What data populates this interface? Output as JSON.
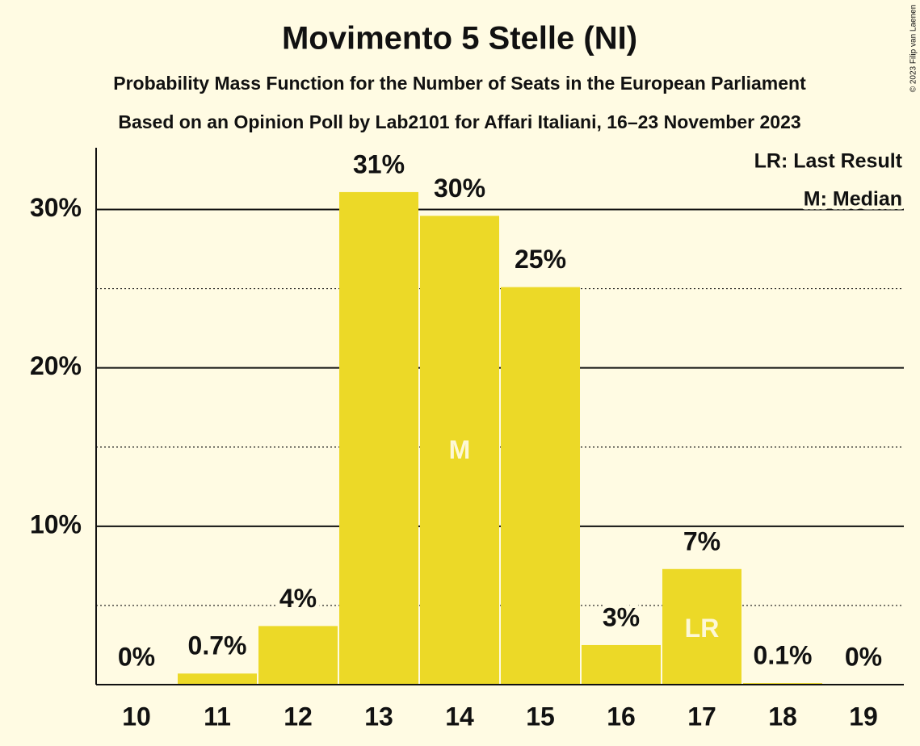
{
  "chart_data": {
    "type": "bar",
    "title": "Movimento 5 Stelle (NI)",
    "subtitle": "Probability Mass Function for the Number of Seats in the European Parliament",
    "subtitle2": "Based on an Opinion Poll by Lab2101 for Affari Italiani, 16–23 November 2023",
    "copyright": "© 2023 Filip van Laenen",
    "categories": [
      "10",
      "11",
      "12",
      "13",
      "14",
      "15",
      "16",
      "17",
      "18",
      "19"
    ],
    "values": [
      0,
      0.7,
      3.7,
      31.1,
      29.6,
      25.1,
      2.5,
      7.3,
      0.1,
      0
    ],
    "value_labels": [
      "0%",
      "0.7%",
      "4%",
      "31%",
      "30%",
      "25%",
      "3%",
      "7%",
      "0.1%",
      "0%"
    ],
    "bar_labels": [
      null,
      null,
      null,
      null,
      "M",
      null,
      null,
      "LR",
      null,
      null
    ],
    "legend": [
      "LR: Last Result",
      "M: Median"
    ],
    "color": "#ecd927",
    "ylim": [
      0,
      33.9
    ],
    "yticks": [
      {
        "value": 10,
        "label": "10%"
      },
      {
        "value": 20,
        "label": "20%"
      },
      {
        "value": 30,
        "label": "30%"
      }
    ],
    "minor_gridlines": [
      5,
      15,
      25
    ],
    "grid": true
  }
}
